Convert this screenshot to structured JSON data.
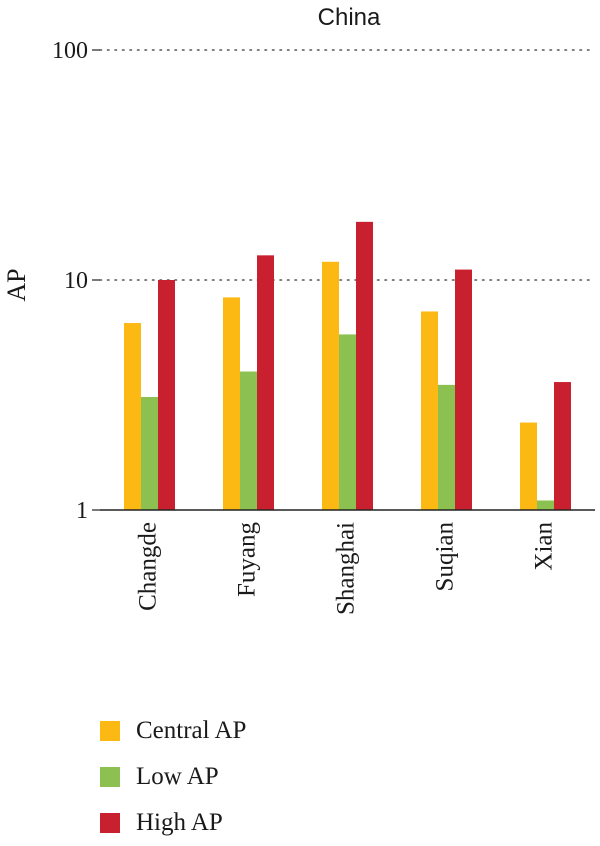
{
  "chart_data": {
    "type": "bar",
    "title": "China",
    "xlabel": "",
    "ylabel": "AP",
    "yscale": "log",
    "ylim": [
      1,
      100
    ],
    "yticks": [
      1,
      10,
      100
    ],
    "grid": "y-dotted",
    "legend_position": "bottom-left",
    "categories": [
      "Changde",
      "Fuyang",
      "Shanghai",
      "Suqian",
      "Xian"
    ],
    "series": [
      {
        "name": "Central AP",
        "color": "#FDB913",
        "values": [
          6.5,
          8.4,
          12.0,
          7.3,
          2.4
        ]
      },
      {
        "name": "Low AP",
        "color": "#8CC152",
        "values": [
          3.1,
          4.0,
          5.8,
          3.5,
          1.1
        ]
      },
      {
        "name": "High AP",
        "color": "#C8202F",
        "values": [
          10.0,
          12.8,
          17.9,
          11.1,
          3.6
        ]
      }
    ]
  }
}
